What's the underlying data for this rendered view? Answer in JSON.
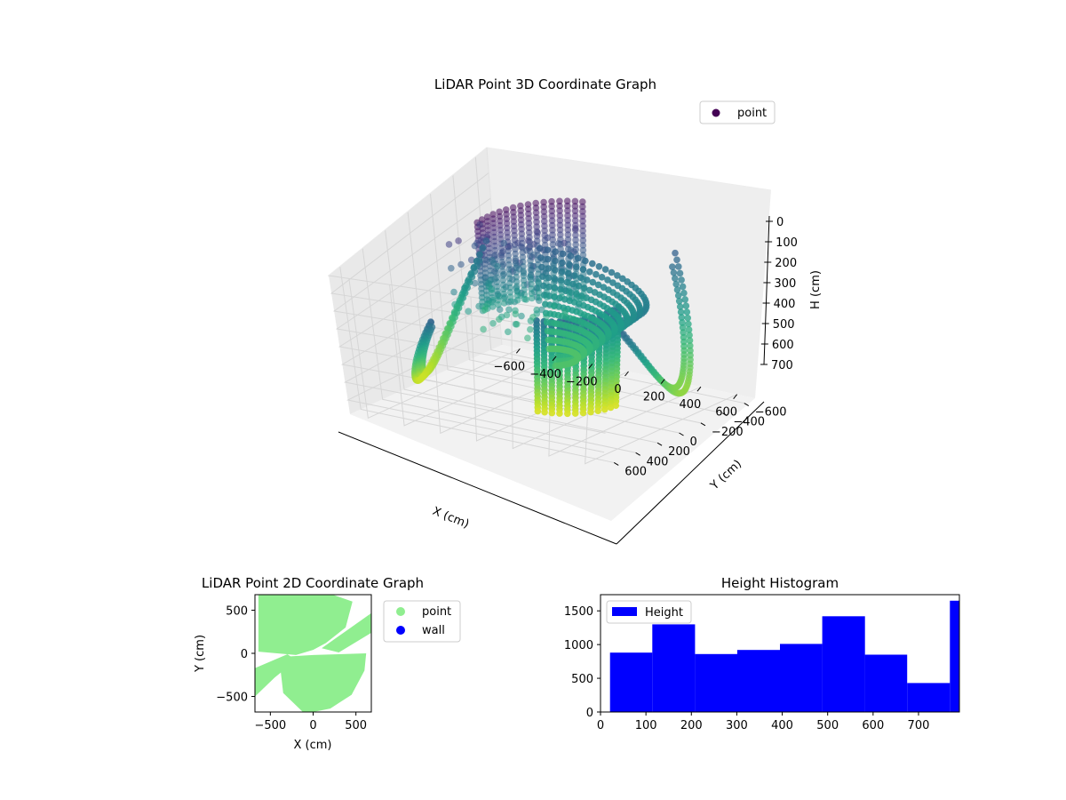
{
  "chart_data": [
    {
      "type": "scatter",
      "projection": "3d",
      "title": "LiDAR Point 3D Coordinate Graph",
      "xlabel": "X (cm)",
      "ylabel": "Y (cm)",
      "zlabel": "H (cm)",
      "xticks": [
        -600,
        -400,
        -200,
        0,
        200,
        400,
        600
      ],
      "yticks": [
        -600,
        -400,
        -200,
        0,
        200,
        400,
        600
      ],
      "zticks": [
        0,
        100,
        200,
        300,
        400,
        500,
        600,
        700
      ],
      "xlim": [
        -700,
        700
      ],
      "ylim": [
        -700,
        700
      ],
      "zlim": [
        0,
        780
      ],
      "z_inverted": true,
      "colormap": "viridis",
      "legend": {
        "placement": "top-right",
        "entries": [
          "point"
        ]
      },
      "legend_color": "#440154",
      "grid": true,
      "series": [
        {
          "name": "point"
        }
      ]
    },
    {
      "type": "scatter",
      "title": "LiDAR Point 2D Coordinate Graph",
      "xlabel": "X (cm)",
      "ylabel": "Y (cm)",
      "xticks": [
        -500,
        0,
        500
      ],
      "yticks": [
        -500,
        0,
        500
      ],
      "xlim": [
        -680,
        680
      ],
      "ylim": [
        -680,
        680
      ],
      "legend": {
        "placement": "outside-right",
        "entries": [
          "point",
          "wall"
        ]
      },
      "series": [
        {
          "name": "point",
          "color": "#90ee90"
        },
        {
          "name": "wall",
          "color": "#0000ff"
        }
      ]
    },
    {
      "type": "bar",
      "title": "Height Histogram",
      "xticks": [
        0,
        100,
        200,
        300,
        400,
        500,
        600,
        700
      ],
      "yticks": [
        0,
        500,
        1000,
        1500
      ],
      "xlim": [
        0,
        790
      ],
      "ylim": [
        0,
        1740
      ],
      "bin_edges": [
        21,
        114,
        208,
        301,
        395,
        488,
        582,
        675,
        769,
        862
      ],
      "values": [
        880,
        1300,
        860,
        920,
        1010,
        1420,
        850,
        430,
        1650
      ],
      "legend": {
        "placement": "top-left",
        "entries": [
          "Height"
        ]
      },
      "series": [
        {
          "name": "Height",
          "color": "#0000ff"
        }
      ]
    }
  ]
}
